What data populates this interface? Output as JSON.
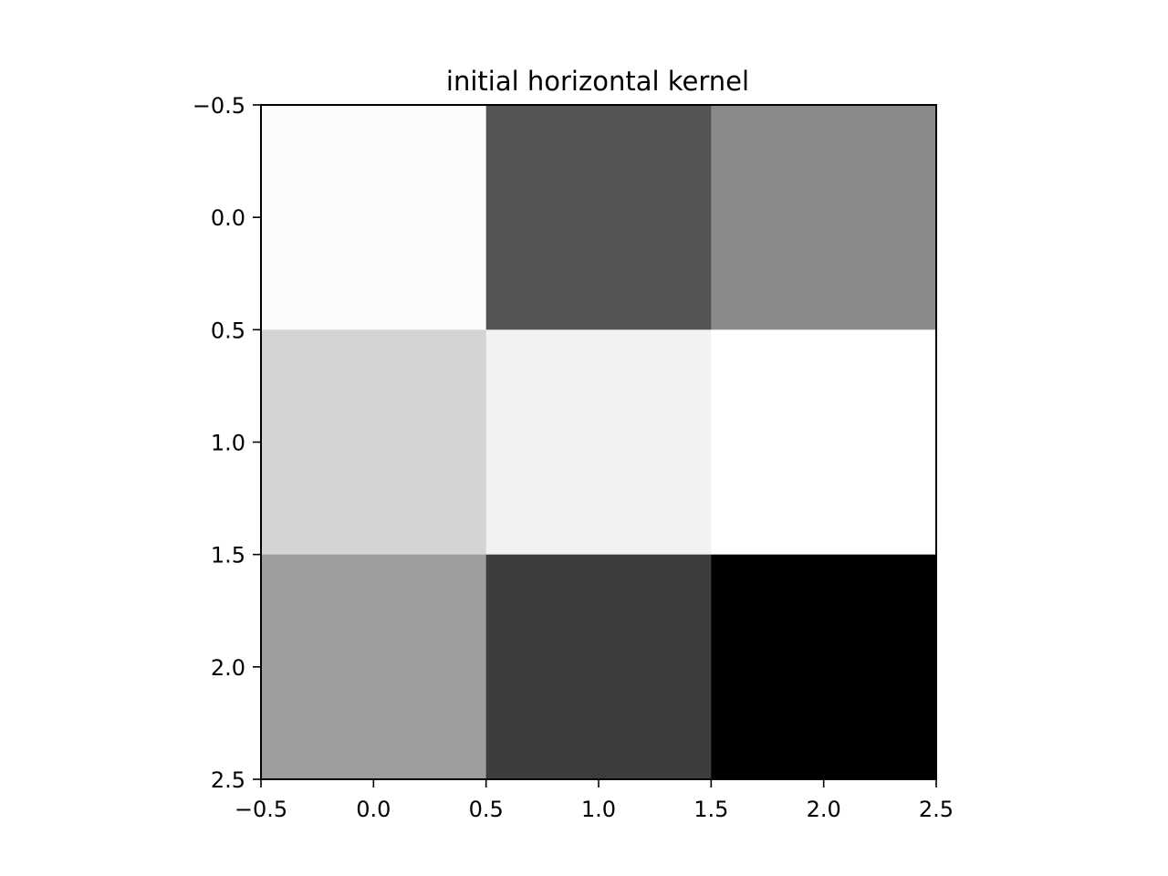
{
  "chart_data": {
    "type": "heatmap",
    "title": "initial horizontal kernel",
    "xlabel": "",
    "ylabel": "",
    "colormap": "gray",
    "rows": 3,
    "cols": 3,
    "values": [
      [
        0.99,
        0.33,
        0.54
      ],
      [
        0.83,
        0.95,
        1.0
      ],
      [
        0.62,
        0.24,
        0.0
      ]
    ],
    "xlim": [
      -0.5,
      2.5
    ],
    "ylim": [
      2.5,
      -0.5
    ],
    "x_ticks": [
      -0.5,
      0.0,
      0.5,
      1.0,
      1.5,
      2.0,
      2.5
    ],
    "x_tick_labels": [
      "−0.5",
      "0.0",
      "0.5",
      "1.0",
      "1.5",
      "2.0",
      "2.5"
    ],
    "y_ticks": [
      -0.5,
      0.0,
      0.5,
      1.0,
      1.5,
      2.0,
      2.5
    ],
    "y_tick_labels": [
      "−0.5",
      "0.0",
      "0.5",
      "1.0",
      "1.5",
      "2.0",
      "2.5"
    ],
    "grid": false,
    "legend": "none"
  }
}
